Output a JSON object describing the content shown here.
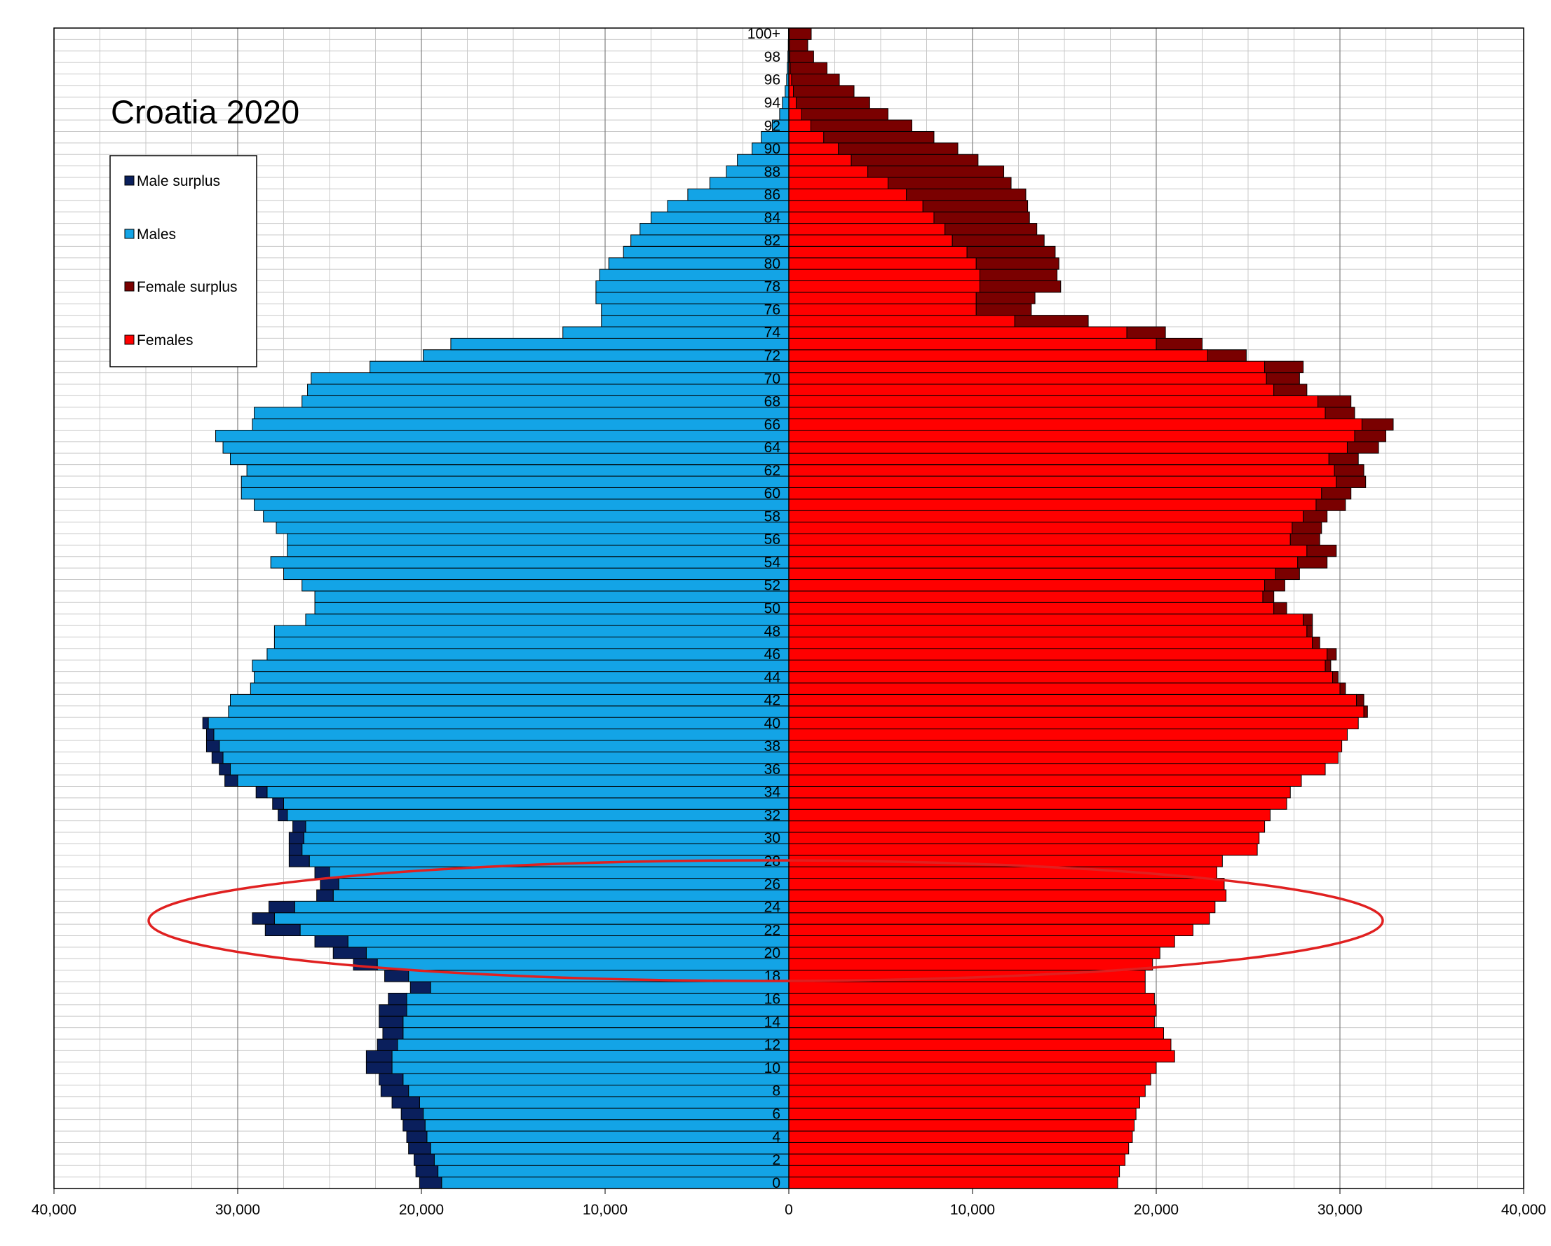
{
  "chart_data": {
    "type": "bar",
    "title": "Croatia 2020",
    "legend_position": "top-left",
    "xlim": [
      -40000,
      40000
    ],
    "x_ticks": [
      "40,000",
      "30,000",
      "20,000",
      "10,000",
      "0",
      "10,000",
      "20,000",
      "30,000",
      "40,000"
    ],
    "grid": true,
    "age_groups": [
      "0",
      "1",
      "2",
      "3",
      "4",
      "5",
      "6",
      "7",
      "8",
      "9",
      "10",
      "11",
      "12",
      "13",
      "14",
      "15",
      "16",
      "17",
      "18",
      "19",
      "20",
      "21",
      "22",
      "23",
      "24",
      "25",
      "26",
      "27",
      "28",
      "29",
      "30",
      "31",
      "32",
      "33",
      "34",
      "35",
      "36",
      "37",
      "38",
      "39",
      "40",
      "41",
      "42",
      "43",
      "44",
      "45",
      "46",
      "47",
      "48",
      "49",
      "50",
      "51",
      "52",
      "53",
      "54",
      "55",
      "56",
      "57",
      "58",
      "59",
      "60",
      "61",
      "62",
      "63",
      "64",
      "65",
      "66",
      "67",
      "68",
      "69",
      "70",
      "71",
      "72",
      "73",
      "74",
      "75",
      "76",
      "77",
      "78",
      "79",
      "80",
      "81",
      "82",
      "83",
      "84",
      "85",
      "86",
      "87",
      "88",
      "89",
      "90",
      "91",
      "92",
      "93",
      "94",
      "95",
      "96",
      "97",
      "98",
      "99",
      "100+"
    ],
    "age_labels": [
      "0",
      "2",
      "4",
      "6",
      "8",
      "10",
      "12",
      "14",
      "16",
      "18",
      "20",
      "22",
      "24",
      "26",
      "28",
      "30",
      "32",
      "34",
      "36",
      "38",
      "40",
      "42",
      "44",
      "46",
      "48",
      "50",
      "52",
      "54",
      "56",
      "58",
      "60",
      "62",
      "64",
      "66",
      "68",
      "70",
      "72",
      "74",
      "76",
      "78",
      "80",
      "82",
      "84",
      "86",
      "88",
      "90",
      "92",
      "94",
      "96",
      "98",
      "100+"
    ],
    "series": [
      {
        "name": "Male surplus",
        "color": "#0a1f5c"
      },
      {
        "name": "Males",
        "color": "#13a4e6"
      },
      {
        "name": "Female surplus",
        "color": "#7a0000"
      },
      {
        "name": "Females",
        "color": "#ff0000"
      }
    ],
    "males": [
      18900,
      19100,
      19300,
      19500,
      19700,
      19800,
      19900,
      20100,
      20700,
      21000,
      21600,
      21600,
      21300,
      21000,
      21000,
      20800,
      20800,
      19500,
      20700,
      22400,
      23000,
      24000,
      26600,
      28000,
      26900,
      24800,
      24500,
      25000,
      26100,
      26500,
      26400,
      26300,
      27300,
      27500,
      28400,
      30000,
      30400,
      30800,
      31000,
      31300,
      31600,
      30500,
      30400,
      29300,
      29100,
      29200,
      28400,
      28000,
      28000,
      26300,
      25800,
      25800,
      26500,
      27500,
      28200,
      27300,
      27300,
      27900,
      28600,
      29100,
      29800,
      29800,
      29500,
      30400,
      30800,
      31200,
      29200,
      29100,
      26500,
      26200,
      26000,
      22800,
      19900,
      18400,
      12300,
      10200,
      10200,
      10500,
      10500,
      10300,
      9800,
      9000,
      8600,
      8100,
      7500,
      6600,
      5500,
      4300,
      3400,
      2800,
      2000,
      1500,
      900,
      500,
      350,
      200,
      120,
      80,
      50,
      30,
      20
    ],
    "females": [
      17900,
      18000,
      18300,
      18500,
      18700,
      18800,
      18900,
      19100,
      19400,
      19700,
      20000,
      21000,
      20800,
      20400,
      19900,
      20000,
      19900,
      19400,
      19400,
      19800,
      20200,
      21000,
      22000,
      22900,
      23200,
      23800,
      23700,
      23300,
      23600,
      25500,
      25600,
      25900,
      26200,
      27100,
      27300,
      27900,
      29200,
      29900,
      30100,
      30400,
      31000,
      31300,
      30900,
      30000,
      29600,
      29200,
      29300,
      28500,
      28200,
      28000,
      26400,
      25800,
      25900,
      26500,
      27700,
      28200,
      27300,
      27400,
      28000,
      28700,
      29000,
      29800,
      29700,
      29400,
      30400,
      30800,
      31200,
      29200,
      28800,
      26400,
      26000,
      25900,
      22800,
      20000,
      18400,
      12300,
      10200,
      10200,
      10400,
      10400,
      10200,
      9700,
      8900,
      8500,
      7900,
      7300,
      6400,
      5400,
      4300,
      3400,
      2700,
      1900,
      1200,
      700,
      400,
      250,
      150,
      80,
      50,
      30,
      20
    ],
    "male_surplus": [
      1200,
      1200,
      1100,
      1200,
      1100,
      1200,
      1200,
      1500,
      1500,
      1300,
      1400,
      1400,
      1100,
      1100,
      1300,
      1500,
      1000,
      1100,
      1300,
      1300,
      1800,
      1800,
      1900,
      1200,
      1400,
      900,
      1000,
      800,
      1100,
      700,
      800,
      700,
      500,
      600,
      600,
      700,
      600,
      600,
      700,
      400,
      300,
      0,
      0,
      0,
      0,
      0,
      0,
      0,
      0,
      0,
      0,
      0,
      0,
      0,
      0,
      0,
      0,
      0,
      0,
      0,
      0,
      0,
      0,
      0,
      0,
      0,
      0,
      0,
      0,
      0,
      0,
      0,
      0,
      0,
      0,
      0,
      0,
      0,
      0,
      0,
      0,
      0,
      0,
      0,
      0,
      0,
      0,
      0,
      0,
      0,
      0,
      0,
      0,
      0,
      0,
      0,
      0,
      0,
      0,
      0,
      0
    ],
    "female_surplus": [
      0,
      0,
      0,
      0,
      0,
      0,
      0,
      0,
      0,
      0,
      0,
      0,
      0,
      0,
      0,
      0,
      0,
      0,
      0,
      0,
      0,
      0,
      0,
      0,
      0,
      0,
      0,
      0,
      0,
      0,
      0,
      0,
      0,
      0,
      0,
      0,
      0,
      0,
      0,
      0,
      0,
      200,
      400,
      300,
      300,
      300,
      500,
      400,
      300,
      500,
      700,
      600,
      1100,
      1300,
      1600,
      1600,
      1600,
      1600,
      1300,
      1600,
      1600,
      1600,
      1600,
      1600,
      1700,
      1700,
      1700,
      1600,
      1800,
      1800,
      1800,
      2100,
      2100,
      2500,
      2100,
      4000,
      3000,
      3200,
      4400,
      4200,
      4500,
      4800,
      5000,
      5000,
      5200,
      5700,
      6500,
      6700,
      7400,
      6900,
      6500,
      6000,
      5500,
      4700,
      4000,
      3300,
      2600,
      2000,
      1300,
      1000,
      1200
    ]
  }
}
